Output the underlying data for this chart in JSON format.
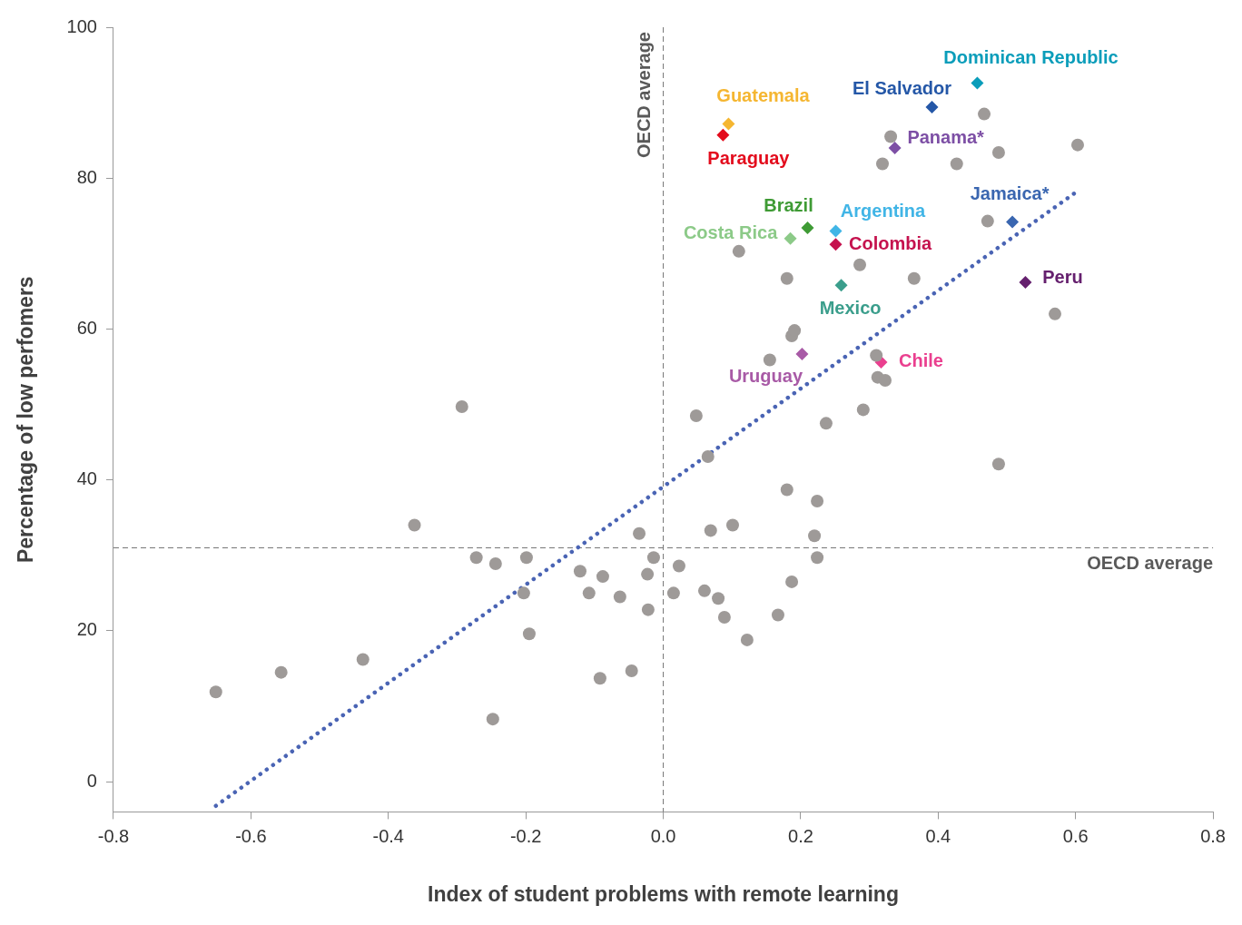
{
  "chart_data": {
    "type": "scatter",
    "xlabel": "Index of student problems with remote learning",
    "ylabel": "Percentage of low perfomers",
    "xlim": [
      -0.8,
      0.8
    ],
    "xticks": [
      {
        "value": -0.8,
        "label": "-0.8"
      },
      {
        "value": -0.6,
        "label": "-0.6"
      },
      {
        "value": -0.4,
        "label": "-0.4"
      },
      {
        "value": -0.2,
        "label": "-0.2"
      },
      {
        "value": 0,
        "label": "0.0"
      },
      {
        "value": 0.2,
        "label": "0.2"
      },
      {
        "value": 0.4,
        "label": "0.4"
      },
      {
        "value": 0.6,
        "label": "0.6"
      },
      {
        "value": 0.8,
        "label": "0.8"
      }
    ],
    "ylim": [
      -4,
      100
    ],
    "yticks": [
      0,
      20,
      40,
      60,
      80,
      100
    ],
    "grid": false,
    "legend": false,
    "marker": "circle",
    "ref_lines": [
      {
        "axis": "x",
        "value": 0,
        "label": "OECD average",
        "color": "#777777",
        "line_style": "dashed"
      },
      {
        "axis": "y",
        "value": 31,
        "label": "OECD average",
        "color": "#777777",
        "line_style": "dashed"
      }
    ],
    "series": [
      {
        "type": "scatter",
        "color": "#9e9a98",
        "x": [
          -0.651,
          -0.556,
          -0.437,
          -0.362,
          -0.293,
          -0.272,
          -0.244,
          -0.248,
          -0.199,
          -0.203,
          -0.195,
          -0.121,
          -0.108,
          -0.088,
          -0.092,
          -0.063,
          -0.046,
          -0.035,
          -0.023,
          -0.022,
          -0.014,
          0.015,
          0.023,
          0.048,
          0.065,
          0.069,
          0.101,
          0.06,
          0.08,
          0.089,
          0.122,
          0.167,
          0.18,
          0.187,
          0.22,
          0.224,
          0.224,
          0.237,
          0.291,
          0.31,
          0.312,
          0.323,
          0.488,
          0.57,
          0.11,
          0.18,
          0.286,
          0.365,
          0.155,
          0.187,
          0.191,
          0.331,
          0.319,
          0.427,
          0.467,
          0.488,
          0.603,
          0.472
        ],
        "values": [
          11.9,
          14.5,
          16.2,
          34.0,
          49.7,
          29.7,
          28.9,
          8.3,
          29.7,
          25.0,
          19.6,
          27.9,
          25.0,
          27.2,
          13.7,
          24.5,
          14.7,
          32.9,
          27.5,
          22.8,
          29.7,
          25.0,
          28.6,
          48.5,
          43.1,
          33.3,
          34.0,
          25.3,
          24.3,
          21.8,
          18.8,
          22.1,
          38.7,
          26.5,
          32.6,
          37.2,
          29.7,
          47.5,
          49.3,
          56.5,
          53.6,
          53.2,
          42.1,
          62.0,
          70.3,
          66.7,
          68.5,
          66.7,
          55.9,
          59.1,
          59.8,
          85.5,
          81.9,
          81.9,
          88.5,
          83.4,
          84.4,
          74.3
        ]
      },
      {
        "type": "scatter",
        "marker": "diamond",
        "name": "Dominican Republic",
        "color": "#0a9dba",
        "x": [
          0.457
        ],
        "values": [
          92.6
        ]
      },
      {
        "type": "scatter",
        "marker": "diamond",
        "name": "El Salvador",
        "color": "#2457a7",
        "x": [
          0.391
        ],
        "values": [
          89.4
        ]
      },
      {
        "type": "scatter",
        "marker": "diamond",
        "name": "Guatemala",
        "color": "#f5b631",
        "x": [
          0.095
        ],
        "values": [
          87.2
        ]
      },
      {
        "type": "scatter",
        "marker": "diamond",
        "name": "Paraguay",
        "color": "#e30b1c",
        "x": [
          0.087
        ],
        "values": [
          85.7
        ]
      },
      {
        "type": "scatter",
        "marker": "diamond",
        "name": "Panama*",
        "color": "#7d4fa5",
        "x": [
          0.337
        ],
        "values": [
          84.0
        ]
      },
      {
        "type": "scatter",
        "marker": "diamond",
        "name": "Brazil",
        "color": "#3f9b35",
        "x": [
          0.21
        ],
        "values": [
          73.4
        ]
      },
      {
        "type": "scatter",
        "marker": "diamond",
        "name": "Argentina",
        "color": "#41b5e6",
        "x": [
          0.251
        ],
        "values": [
          73.0
        ]
      },
      {
        "type": "scatter",
        "marker": "diamond",
        "name": "Costa Rica",
        "color": "#8cca88",
        "x": [
          0.185
        ],
        "values": [
          72.0
        ]
      },
      {
        "type": "scatter",
        "marker": "diamond",
        "name": "Colombia",
        "color": "#c5124e",
        "x": [
          0.251
        ],
        "values": [
          71.2
        ]
      },
      {
        "type": "scatter",
        "marker": "diamond",
        "name": "Jamaica*",
        "color": "#3a66b0",
        "x": [
          0.508
        ],
        "values": [
          74.2
        ]
      },
      {
        "type": "scatter",
        "marker": "diamond",
        "name": "Mexico",
        "color": "#3b9e8c",
        "x": [
          0.259
        ],
        "values": [
          65.8
        ]
      },
      {
        "type": "scatter",
        "marker": "diamond",
        "name": "Peru",
        "color": "#65206e",
        "x": [
          0.527
        ],
        "values": [
          66.2
        ]
      },
      {
        "type": "scatter",
        "marker": "diamond",
        "name": "Uruguay",
        "color": "#a85aa6",
        "x": [
          0.202
        ],
        "values": [
          56.7
        ]
      },
      {
        "type": "scatter",
        "marker": "diamond",
        "name": "Chile",
        "color": "#ea3f8f",
        "x": [
          0.317
        ],
        "values": [
          55.6
        ]
      },
      {
        "type": "line",
        "marker": "none",
        "line_style": "dotted",
        "color": "#4a64b4",
        "x": [
          -0.651,
          0.603
        ],
        "values": [
          -3.2,
          78.3
        ]
      }
    ]
  }
}
